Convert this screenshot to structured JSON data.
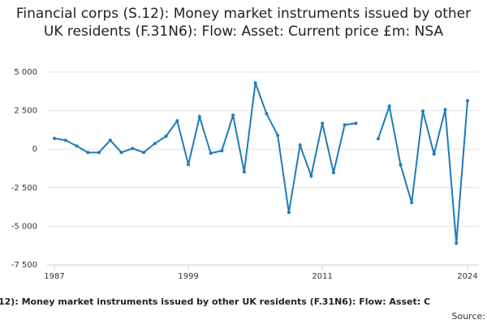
{
  "chart_data": {
    "type": "line",
    "title": "Financial corps (S.12): Money market instruments issued by other UK residents (F.31N6): Flow: Asset: Current price £m: NSA",
    "footer_text": "12): Money market instruments issued by other UK residents (F.31N6): Flow: Asset: C",
    "source_label": "Source:",
    "x": [
      1987,
      1988,
      1989,
      1990,
      1991,
      1992,
      1993,
      1994,
      1995,
      1996,
      1997,
      1998,
      1999,
      2000,
      2001,
      2002,
      2003,
      2004,
      2005,
      2006,
      2007,
      2008,
      2009,
      2010,
      2011,
      2012,
      2013,
      2014,
      2015,
      2016,
      2017,
      2018,
      2019,
      2020,
      2021,
      2022,
      2023,
      2024
    ],
    "series": [
      {
        "color": "#1f7bb8",
        "values": [
          700,
          580,
          210,
          -210,
          -210,
          580,
          -210,
          50,
          -210,
          370,
          840,
          1840,
          -1000,
          2100,
          -260,
          -100,
          2200,
          -1470,
          4300,
          2300,
          900,
          -4100,
          260,
          -1730,
          1680,
          -1520,
          1580,
          1680,
          null,
          680,
          2780,
          -1000,
          -3470,
          2470,
          -310,
          2570,
          -6100,
          3150
        ]
      }
    ],
    "xlim": [
      1987,
      2024
    ],
    "xticks": [
      1987,
      1999,
      2011,
      2024
    ],
    "ylim": [
      -7500,
      5000
    ],
    "yticks": [
      {
        "value": -7500,
        "label": "-7 500"
      },
      {
        "value": -5000,
        "label": "-5 000"
      },
      {
        "value": -2500,
        "label": "-2 500"
      },
      0,
      {
        "value": 2500,
        "label": "2 500"
      },
      {
        "value": 5000,
        "label": "5 000"
      }
    ],
    "grid": true
  }
}
